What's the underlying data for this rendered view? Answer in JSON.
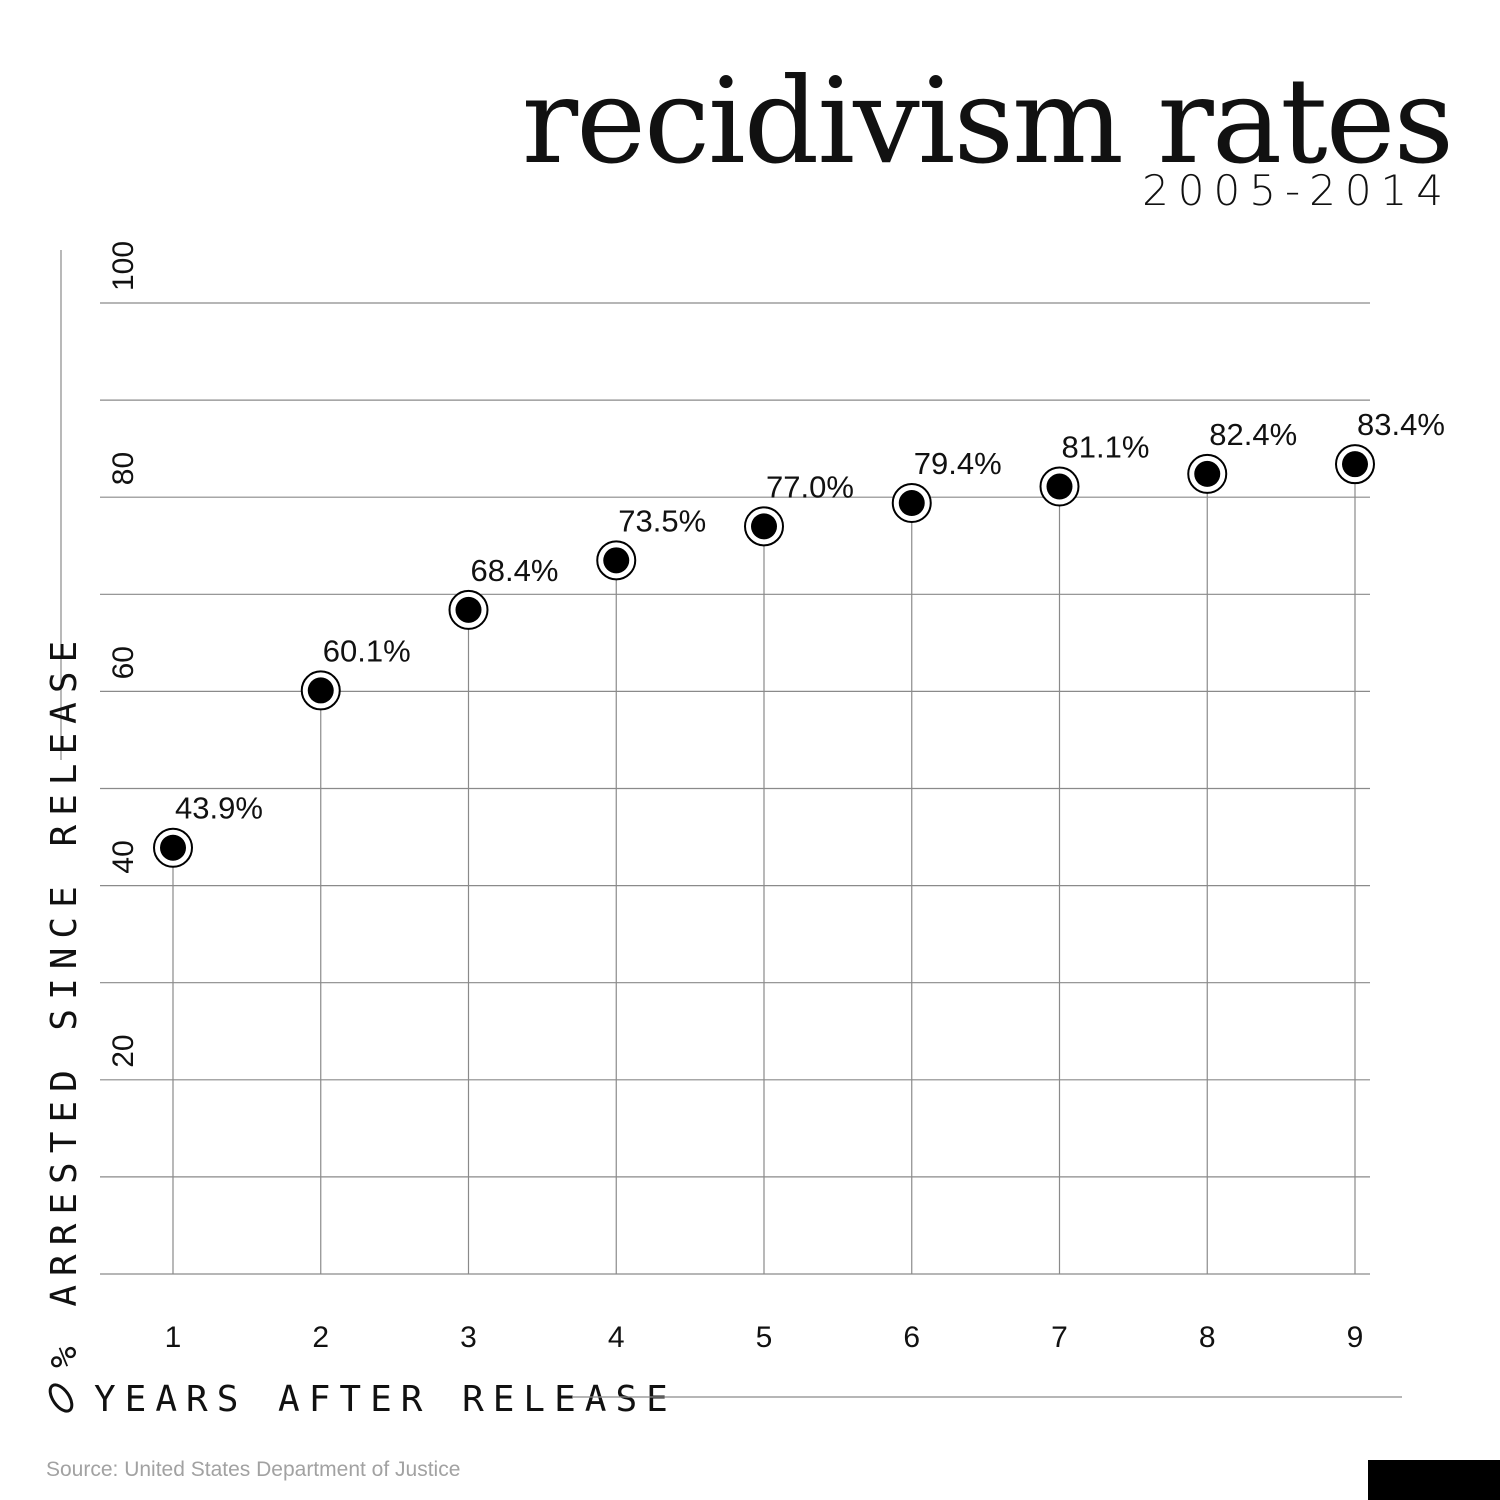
{
  "header": {
    "title": "recidivism rates",
    "subtitle": "2005-2014"
  },
  "footer": {
    "source": "Source: United States Department of Justice"
  },
  "colors": {
    "ink": "#000000",
    "grid": "#8a8a8a",
    "source_text": "#a2a2a2"
  },
  "chart_data": {
    "type": "scatter",
    "title": "recidivism rates",
    "subtitle": "2005-2014",
    "xlabel": "YEARS AFTER RELEASE",
    "ylabel": "% ARRESTED SINCE RELEASE",
    "x": [
      1,
      2,
      3,
      4,
      5,
      6,
      7,
      8,
      9
    ],
    "y": [
      43.9,
      60.1,
      68.4,
      73.5,
      77.0,
      79.4,
      81.1,
      82.4,
      83.4
    ],
    "data_labels": [
      "43.9%",
      "60.1%",
      "68.4%",
      "73.5%",
      "77.0%",
      "79.4%",
      "81.1%",
      "82.4%",
      "83.4%"
    ],
    "x_ticks": [
      "1",
      "2",
      "3",
      "4",
      "5",
      "6",
      "7",
      "8",
      "9"
    ],
    "y_ticks": [
      {
        "value": 20,
        "label": "20"
      },
      {
        "value": 40,
        "label": "40"
      },
      {
        "value": 60,
        "label": "60"
      },
      {
        "value": 80,
        "label": "80"
      },
      {
        "value": 100,
        "label": "100"
      }
    ],
    "ylim": [
      0,
      100
    ],
    "y_grid_step": 10,
    "grid": true,
    "legend": "none"
  }
}
